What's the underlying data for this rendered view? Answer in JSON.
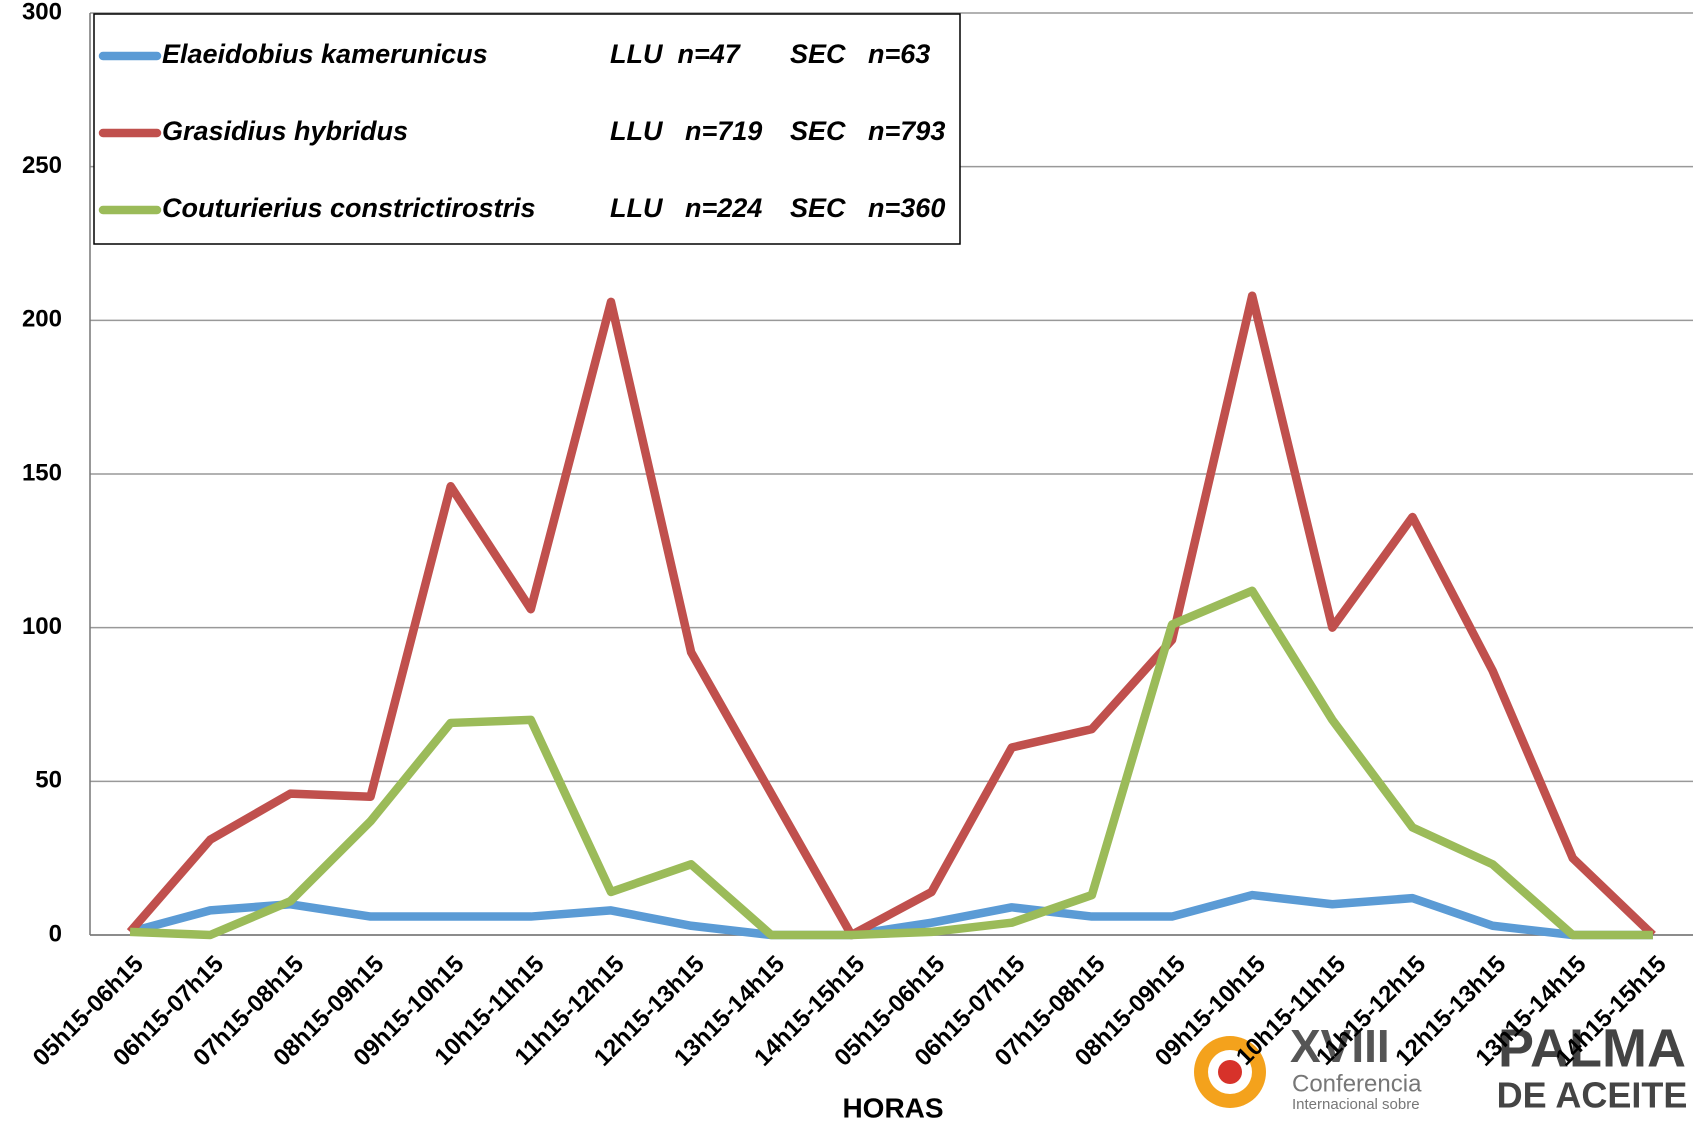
{
  "chart_data": {
    "type": "line",
    "x_label": "HORAS",
    "categories": [
      "05h15-06h15",
      "06h15-07h15",
      "07h15-08h15",
      "08h15-09h15",
      "09h15-10h15",
      "10h15-11h15",
      "11h15-12h15",
      "12h15-13h15",
      "13h15-14h15",
      "14h15-15h15",
      "05h15-06h15",
      "06h15-07h15",
      "07h15-08h15",
      "08h15-09h15",
      "09h15-10h15",
      "10h15-11h15",
      "11h15-12h15",
      "12h15-13h15",
      "13h15-14h15",
      "14h15-15h15"
    ],
    "series": [
      {
        "name": "Elaeidobius kamerunicus",
        "llu": "LLU  n=47",
        "sec": "SEC   n=63",
        "color": "#5b9bd5",
        "values": [
          1,
          8,
          10,
          6,
          6,
          6,
          8,
          3,
          0,
          0,
          4,
          9,
          6,
          6,
          13,
          10,
          12,
          3,
          0,
          0
        ]
      },
      {
        "name": "Grasidius hybridus",
        "llu": "LLU   n=719",
        "sec": "SEC   n=793",
        "color": "#c0504d",
        "values": [
          1,
          31,
          46,
          45,
          146,
          106,
          206,
          92,
          46,
          0,
          14,
          61,
          67,
          96,
          208,
          100,
          136,
          86,
          25,
          0
        ]
      },
      {
        "name": "Couturierius constrictirostris",
        "llu": "LLU   n=224",
        "sec": "SEC   n=360",
        "color": "#9bbb59",
        "values": [
          1,
          0,
          11,
          37,
          69,
          70,
          14,
          23,
          0,
          0,
          1,
          4,
          13,
          101,
          112,
          70,
          35,
          23,
          0,
          0
        ]
      }
    ],
    "ylim": [
      0,
      300
    ],
    "yticks": [
      0,
      50,
      100,
      150,
      200,
      250,
      300
    ],
    "grid": true
  },
  "logo": {
    "numeral": "XVIII",
    "line1": "Conferencia",
    "line2": "Internacional sobre",
    "brand1": "PALMA",
    "brand2": "DE ACEITE"
  }
}
